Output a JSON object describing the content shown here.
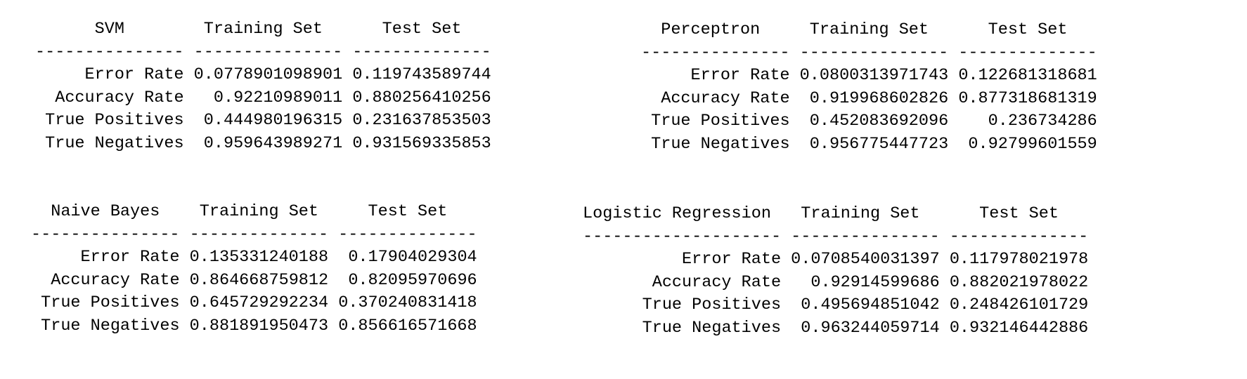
{
  "tables": [
    {
      "model": "SVM",
      "columns": [
        "Training Set",
        "Test Set"
      ],
      "rows": [
        {
          "metric": "Error Rate",
          "training": "0.0778901098901",
          "test": "0.119743589744"
        },
        {
          "metric": "Accuracy Rate",
          "training": "0.92210989011",
          "test": "0.880256410256"
        },
        {
          "metric": "True Positives",
          "training": "0.444980196315",
          "test": "0.231637853503"
        },
        {
          "metric": "True Negatives",
          "training": "0.959643989271",
          "test": "0.931569335853"
        }
      ]
    },
    {
      "model": "Perceptron",
      "columns": [
        "Training Set",
        "Test Set"
      ],
      "rows": [
        {
          "metric": "Error Rate",
          "training": "0.0800313971743",
          "test": "0.122681318681"
        },
        {
          "metric": "Accuracy Rate",
          "training": "0.919968602826",
          "test": "0.877318681319"
        },
        {
          "metric": "True Positives",
          "training": "0.452083692096",
          "test": "0.236734286"
        },
        {
          "metric": "True Negatives",
          "training": "0.956775447723",
          "test": "0.92799601559"
        }
      ]
    },
    {
      "model": "Naive Bayes",
      "columns": [
        "Training Set",
        "Test Set"
      ],
      "rows": [
        {
          "metric": "Error Rate",
          "training": "0.135331240188",
          "test": "0.17904029304"
        },
        {
          "metric": "Accuracy Rate",
          "training": "0.864668759812",
          "test": "0.82095970696"
        },
        {
          "metric": "True Positives",
          "training": "0.645729292234",
          "test": "0.370240831418"
        },
        {
          "metric": "True Negatives",
          "training": "0.881891950473",
          "test": "0.856616571668"
        }
      ]
    },
    {
      "model": "Logistic Regression",
      "columns": [
        "Training Set",
        "Test Set"
      ],
      "rows": [
        {
          "metric": "Error Rate",
          "training": "0.0708540031397",
          "test": "0.117978021978"
        },
        {
          "metric": "Accuracy Rate",
          "training": "0.92914599686",
          "test": "0.882021978022"
        },
        {
          "metric": "True Positives",
          "training": "0.495694851042",
          "test": "0.248426101729"
        },
        {
          "metric": "True Negatives",
          "training": "0.963244059714",
          "test": "0.932146442886"
        }
      ]
    }
  ]
}
